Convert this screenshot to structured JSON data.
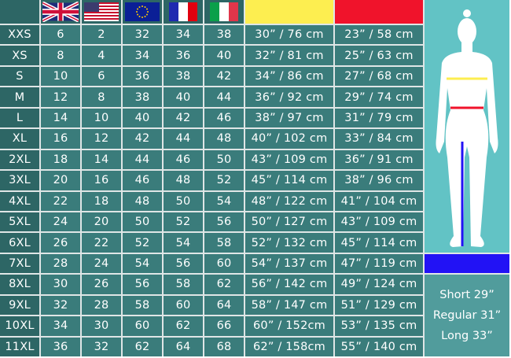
{
  "header": {
    "flags": [
      "uk-flag-icon",
      "us-flag-icon",
      "eu-flag-icon",
      "france-flag-icon",
      "italy-flag-icon"
    ],
    "chest_color": "#fdee50",
    "waist_color": "#f0132b",
    "inseam_color": "#2212f5"
  },
  "rows": [
    [
      "XXS",
      "6",
      "2",
      "32",
      "34",
      "38",
      "30” / 76 cm",
      "23” / 58 cm"
    ],
    [
      "XS",
      "8",
      "4",
      "34",
      "36",
      "40",
      "32” / 81 cm",
      "25” / 63 cm"
    ],
    [
      "S",
      "10",
      "6",
      "36",
      "38",
      "42",
      "34” / 86 cm",
      "27” / 68 cm"
    ],
    [
      "M",
      "12",
      "8",
      "38",
      "40",
      "44",
      "36” / 92 cm",
      "29” / 74 cm"
    ],
    [
      "L",
      "14",
      "10",
      "40",
      "42",
      "46",
      "38” / 97 cm",
      "31” / 79 cm"
    ],
    [
      "XL",
      "16",
      "12",
      "42",
      "44",
      "48",
      "40” / 102 cm",
      "33” / 84 cm"
    ],
    [
      "2XL",
      "18",
      "14",
      "44",
      "46",
      "50",
      "43” / 109 cm",
      "36” / 91 cm"
    ],
    [
      "3XL",
      "20",
      "16",
      "46",
      "48",
      "52",
      "45” / 114 cm",
      "38” / 96 cm"
    ],
    [
      "4XL",
      "22",
      "18",
      "48",
      "50",
      "54",
      "48” / 122 cm",
      "41” / 104 cm"
    ],
    [
      "5XL",
      "24",
      "20",
      "50",
      "52",
      "56",
      "50” / 127 cm",
      "43” / 109 cm"
    ],
    [
      "6XL",
      "26",
      "22",
      "52",
      "54",
      "58",
      "52” / 132 cm",
      "45” / 114 cm"
    ],
    [
      "7XL",
      "28",
      "24",
      "54",
      "56",
      "60",
      "54” / 137 cm",
      "47” / 119 cm"
    ],
    [
      "8XL",
      "30",
      "26",
      "56",
      "58",
      "62",
      "56” / 142 cm",
      "49” / 124 cm"
    ],
    [
      "9XL",
      "32",
      "28",
      "58",
      "60",
      "64",
      "58” / 147 cm",
      "51” / 129 cm"
    ],
    [
      "10XL",
      "34",
      "30",
      "60",
      "62",
      "66",
      "60” / 152cm",
      "53” / 135 cm"
    ],
    [
      "11XL",
      "36",
      "32",
      "62",
      "64",
      "68",
      "62” / 158cm",
      "55” / 140 cm"
    ]
  ],
  "inseam": {
    "lines": [
      "Short 29”",
      "Regular 31”",
      "Long 33”"
    ]
  }
}
